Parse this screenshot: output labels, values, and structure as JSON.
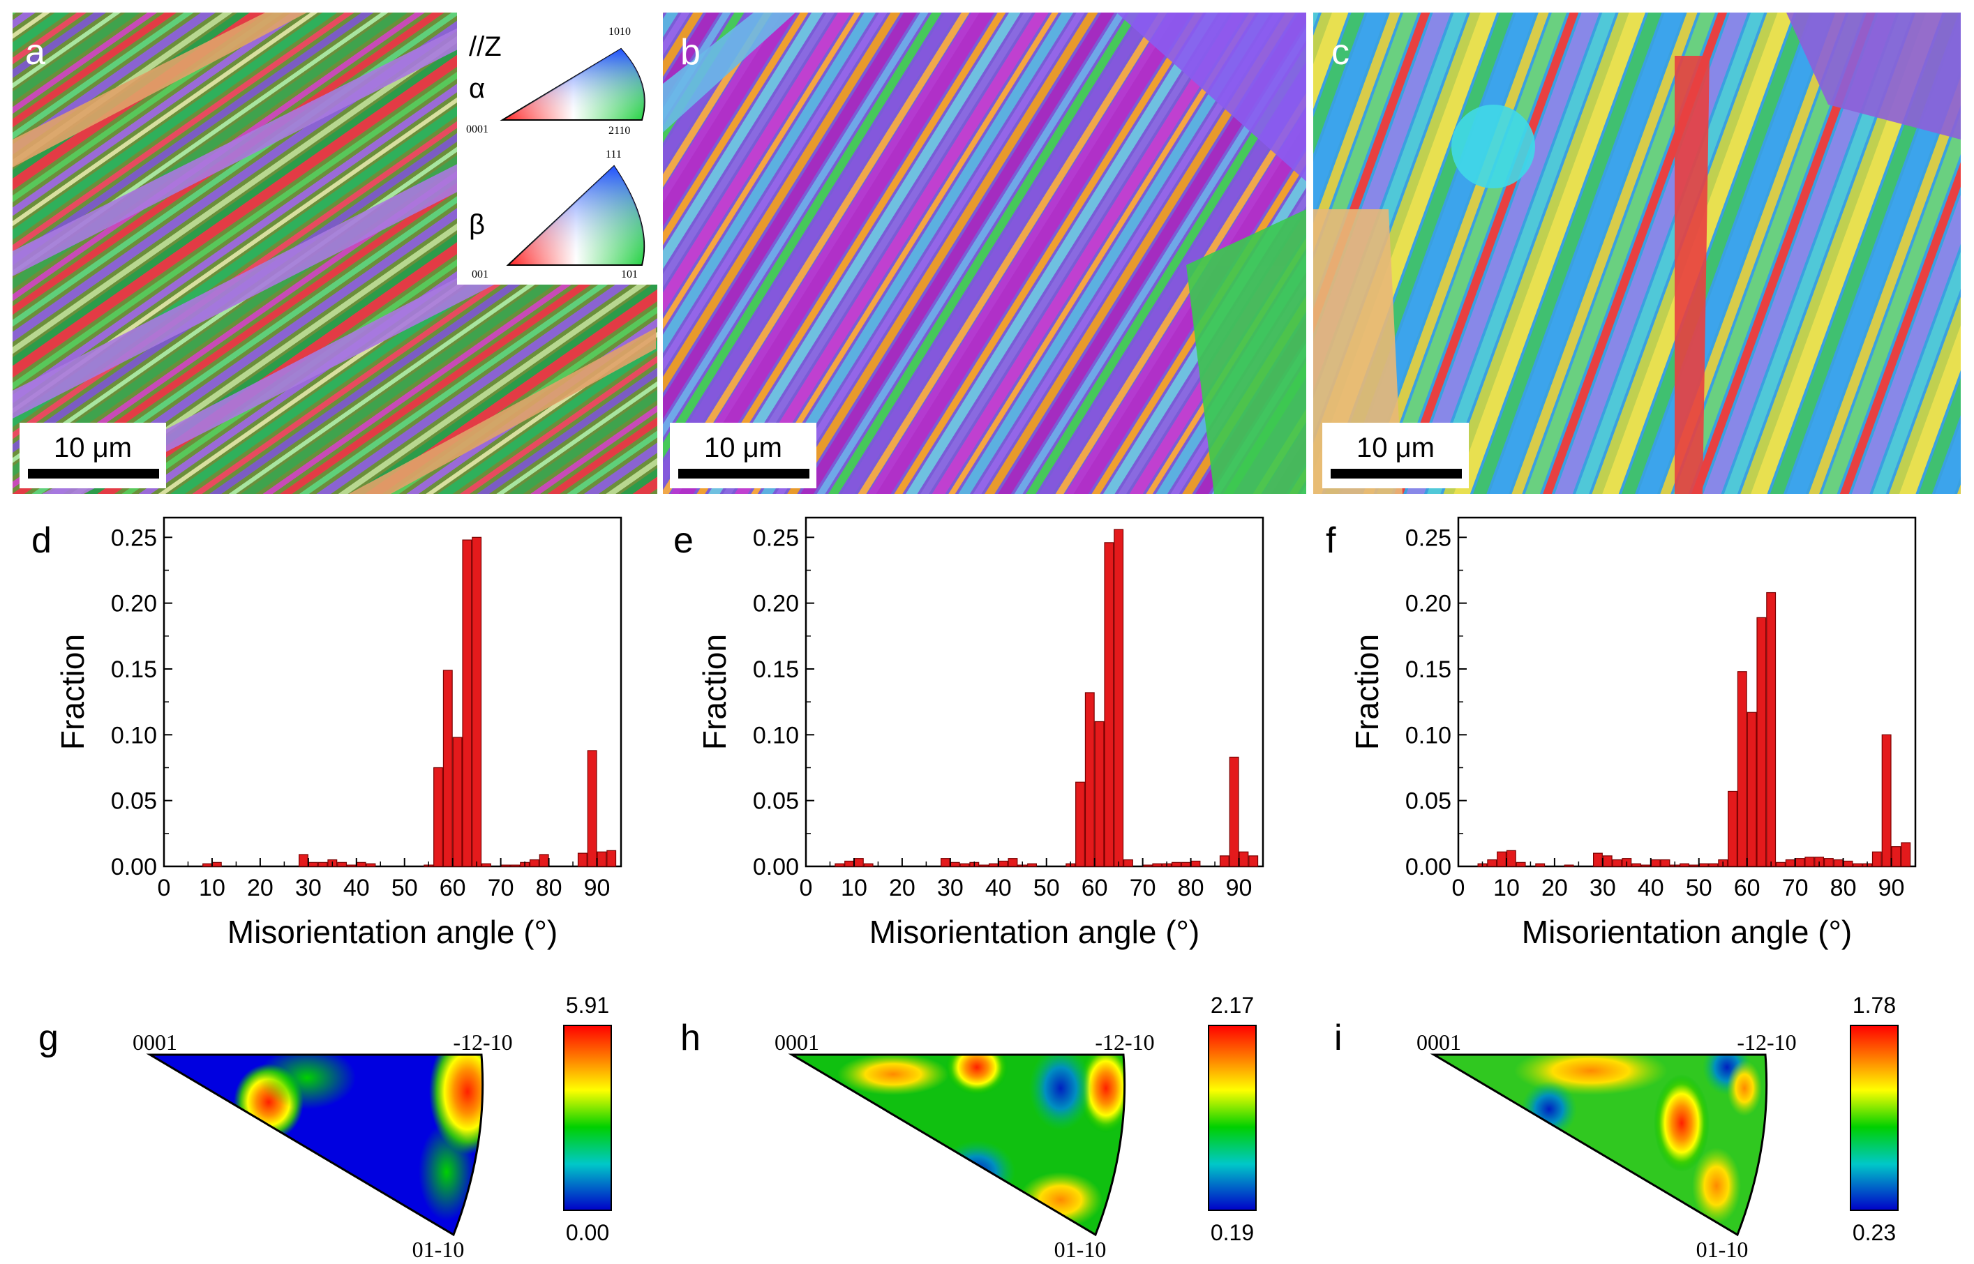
{
  "ebsd": [
    {
      "label": "a",
      "scale": "10 μm"
    },
    {
      "label": "b",
      "scale": "10 μm"
    },
    {
      "label": "c",
      "scale": "10 μm"
    }
  ],
  "ipf_key": {
    "axis": "//Z",
    "alpha": {
      "symbol": "α",
      "c0001": "0001",
      "c1010": "1010",
      "c2110": "2110"
    },
    "beta": {
      "symbol": "β",
      "c001": "001",
      "c101": "101",
      "c111": "111"
    }
  },
  "charts": [
    {
      "label": "d"
    },
    {
      "label": "e"
    },
    {
      "label": "f"
    }
  ],
  "chart_data": [
    {
      "type": "bar",
      "panel": "d",
      "xlabel": "Misorientation angle (°)",
      "ylabel": "Fraction",
      "xlim": [
        0,
        95
      ],
      "ylim": [
        0,
        0.265
      ],
      "xticks": [
        0,
        10,
        20,
        30,
        40,
        50,
        60,
        70,
        80,
        90
      ],
      "yticks": [
        0.0,
        0.05,
        0.1,
        0.15,
        0.2,
        0.25
      ],
      "ytick_labels": [
        "0.00",
        "0.05",
        "0.10",
        "0.15",
        "0.20",
        "0.25"
      ],
      "x": [
        3,
        5,
        7,
        9,
        11,
        13,
        15,
        17,
        19,
        21,
        23,
        25,
        27,
        29,
        31,
        33,
        35,
        37,
        39,
        41,
        43,
        45,
        47,
        49,
        51,
        53,
        55,
        57,
        59,
        61,
        63,
        65,
        67,
        69,
        71,
        73,
        75,
        77,
        79,
        81,
        83,
        85,
        87,
        89,
        91,
        93
      ],
      "values": [
        0,
        0,
        0,
        0.002,
        0.003,
        0,
        0,
        0,
        0,
        0,
        0,
        0,
        0,
        0.009,
        0.003,
        0.003,
        0.005,
        0.003,
        0.001,
        0.003,
        0.002,
        0,
        0,
        0,
        0,
        0,
        0.001,
        0.075,
        0.149,
        0.098,
        0.248,
        0.25,
        0.002,
        0,
        0.001,
        0.001,
        0.003,
        0.005,
        0.009,
        0,
        0,
        0,
        0.01,
        0.088,
        0.011,
        0.012
      ]
    },
    {
      "type": "bar",
      "panel": "e",
      "xlabel": "Misorientation angle (°)",
      "ylabel": "Fraction",
      "xlim": [
        0,
        95
      ],
      "ylim": [
        0,
        0.265
      ],
      "xticks": [
        0,
        10,
        20,
        30,
        40,
        50,
        60,
        70,
        80,
        90
      ],
      "yticks": [
        0.0,
        0.05,
        0.1,
        0.15,
        0.2,
        0.25
      ],
      "ytick_labels": [
        "0.00",
        "0.05",
        "0.10",
        "0.15",
        "0.20",
        "0.25"
      ],
      "x": [
        3,
        5,
        7,
        9,
        11,
        13,
        15,
        17,
        19,
        21,
        23,
        25,
        27,
        29,
        31,
        33,
        35,
        37,
        39,
        41,
        43,
        45,
        47,
        49,
        51,
        53,
        55,
        57,
        59,
        61,
        63,
        65,
        67,
        69,
        71,
        73,
        75,
        77,
        79,
        81,
        83,
        85,
        87,
        89,
        91,
        93
      ],
      "values": [
        0,
        0,
        0.002,
        0.004,
        0.006,
        0.002,
        0,
        0,
        0,
        0,
        0,
        0,
        0,
        0.006,
        0.003,
        0.002,
        0.003,
        0.001,
        0.002,
        0.004,
        0.006,
        0.001,
        0.002,
        0,
        0,
        0,
        0.002,
        0.064,
        0.132,
        0.11,
        0.246,
        0.256,
        0.005,
        0,
        0.001,
        0.002,
        0.002,
        0.003,
        0.003,
        0.004,
        0,
        0,
        0.008,
        0.083,
        0.011,
        0.008
      ]
    },
    {
      "type": "bar",
      "panel": "f",
      "xlabel": "Misorientation angle (°)",
      "ylabel": "Fraction",
      "xlim": [
        0,
        95
      ],
      "ylim": [
        0,
        0.265
      ],
      "xticks": [
        0,
        10,
        20,
        30,
        40,
        50,
        60,
        70,
        80,
        90
      ],
      "yticks": [
        0.0,
        0.05,
        0.1,
        0.15,
        0.2,
        0.25
      ],
      "ytick_labels": [
        "0.00",
        "0.05",
        "0.10",
        "0.15",
        "0.20",
        "0.25"
      ],
      "x": [
        3,
        5,
        7,
        9,
        11,
        13,
        15,
        17,
        19,
        21,
        23,
        25,
        27,
        29,
        31,
        33,
        35,
        37,
        39,
        41,
        43,
        45,
        47,
        49,
        51,
        53,
        55,
        57,
        59,
        61,
        63,
        65,
        67,
        69,
        71,
        73,
        75,
        77,
        79,
        81,
        83,
        85,
        87,
        89,
        91,
        93
      ],
      "values": [
        0,
        0.002,
        0.005,
        0.011,
        0.012,
        0.003,
        0,
        0.002,
        0,
        0,
        0.001,
        0,
        0,
        0.01,
        0.008,
        0.005,
        0.006,
        0.002,
        0.001,
        0.005,
        0.005,
        0.001,
        0.002,
        0.001,
        0.002,
        0.002,
        0.005,
        0.057,
        0.148,
        0.117,
        0.189,
        0.208,
        0.003,
        0.005,
        0.006,
        0.007,
        0.007,
        0.006,
        0.005,
        0.004,
        0.002,
        0.002,
        0.011,
        0.1,
        0.015,
        0.018
      ]
    }
  ],
  "pole_figures": [
    {
      "label": "g",
      "c0001": "0001",
      "c1210": "-12-10",
      "c0110": "01-10",
      "max": "5.91",
      "min": "0.00"
    },
    {
      "label": "h",
      "c0001": "0001",
      "c1210": "-12-10",
      "c0110": "01-10",
      "max": "2.17",
      "min": "0.19"
    },
    {
      "label": "i",
      "c0001": "0001",
      "c1210": "-12-10",
      "c0110": "01-10",
      "max": "1.78",
      "min": "0.23"
    }
  ],
  "colors": {
    "bar": "#e41a1c",
    "bar_edge": "#7a0000"
  }
}
